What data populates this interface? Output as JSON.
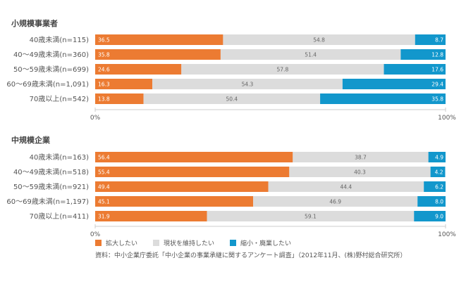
{
  "colors": {
    "expand": "#ec7b32",
    "maintain": "#dcdcdc",
    "shrink": "#1297cc",
    "text": "#555555"
  },
  "legend": [
    {
      "label": "拡大したい",
      "key": "expand"
    },
    {
      "label": "現状を維持したい",
      "key": "maintain"
    },
    {
      "label": "縮小・廃業したい",
      "key": "shrink"
    }
  ],
  "source": "資料：中小企業庁委託「中小企業の事業承継に関するアンケート調査」（2012年11月、(株)野村総合研究所）",
  "chart_data": [
    {
      "type": "bar",
      "stacked": true,
      "orientation": "horizontal",
      "title": "小規模事業者",
      "categories": [
        "40歳未満(n=115)",
        "40〜49歳未満(n=360)",
        "50〜59歳未満(n=699)",
        "60〜69歳未満(n=1,091)",
        "70歳以上(n=542)"
      ],
      "series": [
        {
          "name": "拡大したい",
          "values": [
            36.5,
            35.8,
            24.6,
            16.3,
            13.8
          ]
        },
        {
          "name": "現状を維持したい",
          "values": [
            54.8,
            51.4,
            57.8,
            54.3,
            50.4
          ]
        },
        {
          "name": "縮小・廃業したい",
          "values": [
            8.7,
            12.8,
            17.6,
            29.4,
            35.8
          ]
        }
      ],
      "xlim": [
        0,
        100
      ],
      "xtick_labels": [
        "0%",
        "100%"
      ]
    },
    {
      "type": "bar",
      "stacked": true,
      "orientation": "horizontal",
      "title": "中規模企業",
      "categories": [
        "40歳未満(n=163)",
        "40〜49歳未満(n=518)",
        "50〜59歳未満(n=921)",
        "60〜69歳未満(n=1,197)",
        "70歳以上(n=411)"
      ],
      "series": [
        {
          "name": "拡大したい",
          "values": [
            56.4,
            55.4,
            49.4,
            45.1,
            31.9
          ]
        },
        {
          "name": "現状を維持したい",
          "values": [
            38.7,
            40.3,
            44.4,
            46.9,
            59.1
          ]
        },
        {
          "name": "縮小・廃業したい",
          "values": [
            4.9,
            4.2,
            6.2,
            8.0,
            9.0
          ]
        }
      ],
      "xlim": [
        0,
        100
      ],
      "xtick_labels": [
        "0%",
        "100%"
      ]
    }
  ]
}
